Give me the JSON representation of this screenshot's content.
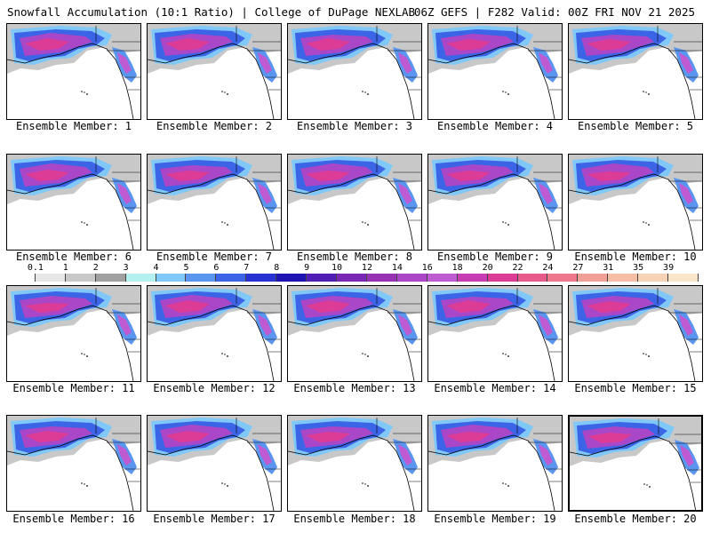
{
  "header": {
    "left": "Snowfall Accumulation (10:1 Ratio) | College of DuPage NEXLAB",
    "right": "06Z GEFS | F282 Valid: 00Z FRI NOV 21 2025"
  },
  "members": [
    {
      "caption": "Ensemble Member: 1"
    },
    {
      "caption": "Ensemble Member: 2"
    },
    {
      "caption": "Ensemble Member: 3"
    },
    {
      "caption": "Ensemble Member: 4"
    },
    {
      "caption": "Ensemble Member: 5"
    },
    {
      "caption": "Ensemble Member: 6"
    },
    {
      "caption": "Ensemble Member: 7"
    },
    {
      "caption": "Ensemble Member: 8"
    },
    {
      "caption": "Ensemble Member: 9"
    },
    {
      "caption": "Ensemble Member: 10"
    },
    {
      "caption": "Ensemble Member: 11"
    },
    {
      "caption": "Ensemble Member: 12"
    },
    {
      "caption": "Ensemble Member: 13"
    },
    {
      "caption": "Ensemble Member: 14"
    },
    {
      "caption": "Ensemble Member: 15"
    },
    {
      "caption": "Ensemble Member: 16"
    },
    {
      "caption": "Ensemble Member: 17"
    },
    {
      "caption": "Ensemble Member: 18"
    },
    {
      "caption": "Ensemble Member: 19"
    },
    {
      "caption": "Ensemble Member: 20"
    }
  ],
  "legend": {
    "ticks": [
      "0.1",
      "1",
      "2",
      "3",
      "4",
      "5",
      "6",
      "7",
      "8",
      "9",
      "10",
      "12",
      "14",
      "16",
      "18",
      "20",
      "22",
      "24",
      "27",
      "31",
      "35",
      "39"
    ],
    "colors": [
      "#ffffff",
      "#e6e6e6",
      "#c8c8c8",
      "#a0a0a0",
      "#b4f0f0",
      "#80c8f8",
      "#5a96f0",
      "#3c64e6",
      "#2832d2",
      "#1e14b4",
      "#501eb4",
      "#7828b4",
      "#9632b4",
      "#aa46c8",
      "#be5ad2",
      "#c83cb4",
      "#dc3c96",
      "#e65a8c",
      "#f0788c",
      "#f0a096",
      "#f5bea5",
      "#f8d2b4",
      "#fae6c8"
    ]
  }
}
